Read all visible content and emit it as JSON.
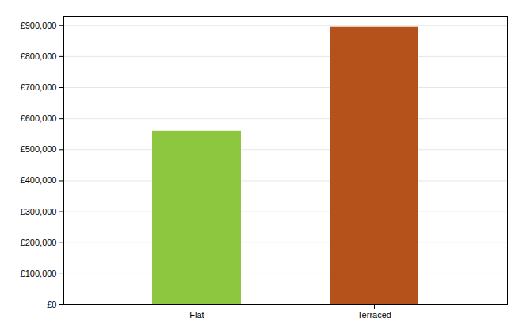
{
  "chart_data": {
    "type": "bar",
    "categories": [
      "Flat",
      "Terraced"
    ],
    "values": [
      560000,
      895000
    ],
    "colors": [
      "#8dc63f",
      "#b5521b"
    ],
    "ylim": [
      0,
      930000
    ],
    "yticks": [
      {
        "value": 0,
        "label": "£0"
      },
      {
        "value": 100000,
        "label": "£100,000"
      },
      {
        "value": 200000,
        "label": "£200,000"
      },
      {
        "value": 300000,
        "label": "£300,000"
      },
      {
        "value": 400000,
        "label": "£400,000"
      },
      {
        "value": 500000,
        "label": "£500,000"
      },
      {
        "value": 600000,
        "label": "£600,000"
      },
      {
        "value": 700000,
        "label": "£700,000"
      },
      {
        "value": 800000,
        "label": "£800,000"
      },
      {
        "value": 900000,
        "label": "£900,000"
      }
    ],
    "grid": true
  }
}
